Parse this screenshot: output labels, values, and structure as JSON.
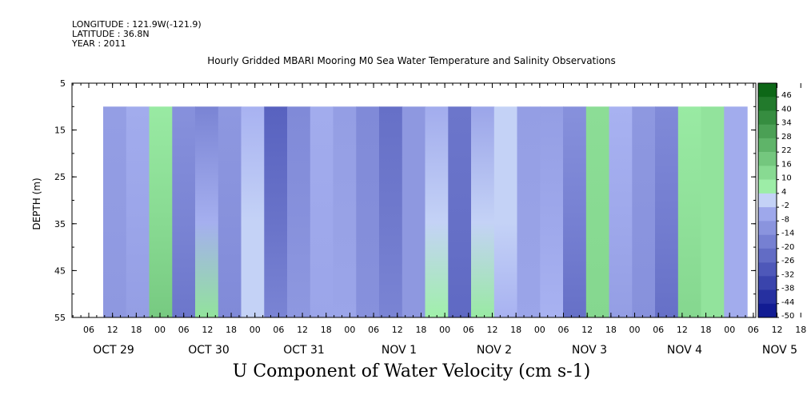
{
  "header": {
    "longitude": "LONGITUDE : 121.9W(-121.9)",
    "latitude": "LATITUDE : 36.8N",
    "year": "YEAR : 2011"
  },
  "chart_data": {
    "type": "heatmap",
    "title": "Hourly Gridded MBARI Mooring M0 Sea Water Temperature and Salinity Observations",
    "caption": "U Component of Water Velocity (cm s-1)",
    "ylabel": "DEPTH (m)",
    "y_axis": {
      "ticks": [
        5,
        15,
        25,
        35,
        45,
        55
      ],
      "range": [
        5,
        55
      ],
      "inverted": true
    },
    "data_depth_range": [
      10,
      55
    ],
    "x_axis": {
      "hour_ticks": [
        "06",
        "12",
        "18",
        "00",
        "06",
        "12",
        "18",
        "00",
        "06",
        "12",
        "18",
        "00",
        "06",
        "12",
        "18",
        "00",
        "06",
        "12",
        "18",
        "00",
        "06",
        "12",
        "18",
        "00",
        "06",
        "12",
        "18",
        "00",
        "06",
        "12",
        "18",
        "00"
      ],
      "day_labels": [
        "OCT 29",
        "OCT 30",
        "OCT 31",
        "NOV  1",
        "NOV  2",
        "NOV  3",
        "NOV  4",
        "NOV  5"
      ]
    },
    "colorbar": {
      "min": -50,
      "max": 50,
      "step": 6,
      "labels": [
        "46",
        "40",
        "34",
        "28",
        "22",
        "16",
        "10",
        "4",
        "-2",
        "-8",
        "-14",
        "-20",
        "-26",
        "-32",
        "-38",
        "-44",
        "-50"
      ]
    },
    "columns": [
      {
        "day": "OCT 29",
        "hour": 6,
        "shallow": -10,
        "deep": -12
      },
      {
        "day": "OCT 29",
        "hour": 12,
        "shallow": -6,
        "deep": -10
      },
      {
        "day": "OCT 29",
        "hour": 18,
        "shallow": 6,
        "deep": 16
      },
      {
        "day": "OCT 30",
        "hour": 0,
        "shallow": -14,
        "deep": -22
      },
      {
        "day": "OCT 30",
        "hour": 6,
        "shallow": -18,
        "deep": 8
      },
      {
        "day": "OCT 30",
        "hour": 12,
        "shallow": -12,
        "deep": -16
      },
      {
        "day": "OCT 30",
        "hour": 18,
        "shallow": -4,
        "deep": 2
      },
      {
        "day": "OCT 31",
        "hour": 0,
        "shallow": -28,
        "deep": -18
      },
      {
        "day": "OCT 31",
        "hour": 6,
        "shallow": -16,
        "deep": -12
      },
      {
        "day": "OCT 31",
        "hour": 12,
        "shallow": -6,
        "deep": -8
      },
      {
        "day": "OCT 31",
        "hour": 18,
        "shallow": -10,
        "deep": -8
      },
      {
        "day": "NOV 1",
        "hour": 0,
        "shallow": -16,
        "deep": -14
      },
      {
        "day": "NOV 1",
        "hour": 6,
        "shallow": -24,
        "deep": -18
      },
      {
        "day": "NOV 1",
        "hour": 12,
        "shallow": -12,
        "deep": -12
      },
      {
        "day": "NOV 1",
        "hour": 18,
        "shallow": -6,
        "deep": 4
      },
      {
        "day": "NOV 2",
        "hour": 0,
        "shallow": -22,
        "deep": -26
      },
      {
        "day": "NOV 2",
        "hour": 6,
        "shallow": -8,
        "deep": 6
      },
      {
        "day": "NOV 2",
        "hour": 12,
        "shallow": 2,
        "deep": -4
      },
      {
        "day": "NOV 2",
        "hour": 18,
        "shallow": -10,
        "deep": -8
      },
      {
        "day": "NOV 3",
        "hour": 0,
        "shallow": -10,
        "deep": -4
      },
      {
        "day": "NOV 3",
        "hour": 6,
        "shallow": -14,
        "deep": -24
      },
      {
        "day": "NOV 3",
        "hour": 12,
        "shallow": 10,
        "deep": 12
      },
      {
        "day": "NOV 3",
        "hour": 18,
        "shallow": -4,
        "deep": -10
      },
      {
        "day": "NOV 4",
        "hour": 0,
        "shallow": -12,
        "deep": -14
      },
      {
        "day": "NOV 4",
        "hour": 6,
        "shallow": -16,
        "deep": -24
      },
      {
        "day": "NOV 4",
        "hour": 12,
        "shallow": 6,
        "deep": 12
      },
      {
        "day": "NOV 4",
        "hour": 18,
        "shallow": 8,
        "deep": 8
      },
      {
        "day": "NOV 5",
        "hour": 0,
        "shallow": -6,
        "deep": -6
      }
    ]
  }
}
